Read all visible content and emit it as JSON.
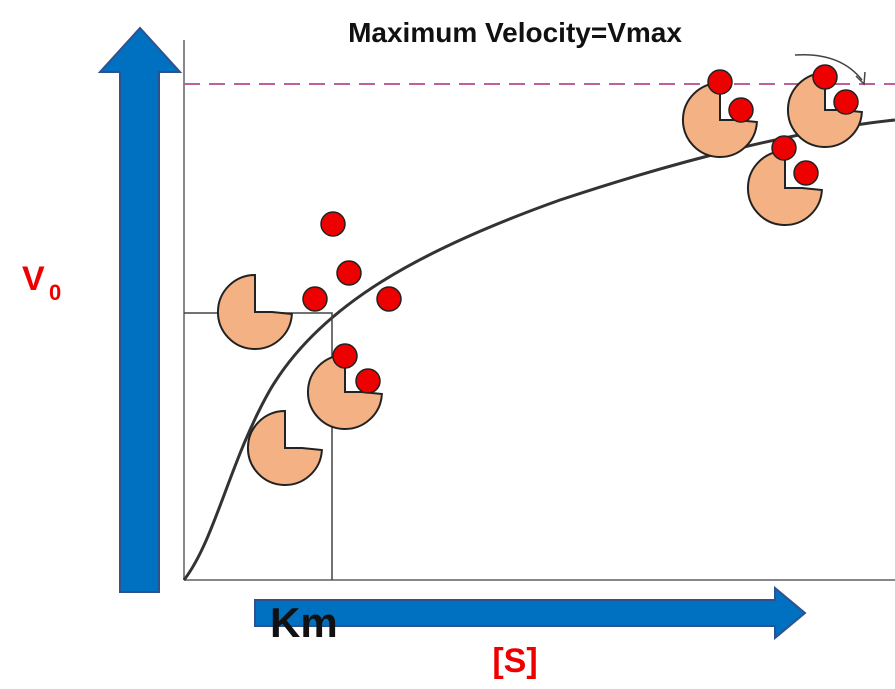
{
  "title": "Maximum Velocity=Vmax",
  "y_axis": {
    "label": "V",
    "subscript": "0"
  },
  "x_axis": {
    "label": "[S]",
    "marker": "Km"
  }
}
